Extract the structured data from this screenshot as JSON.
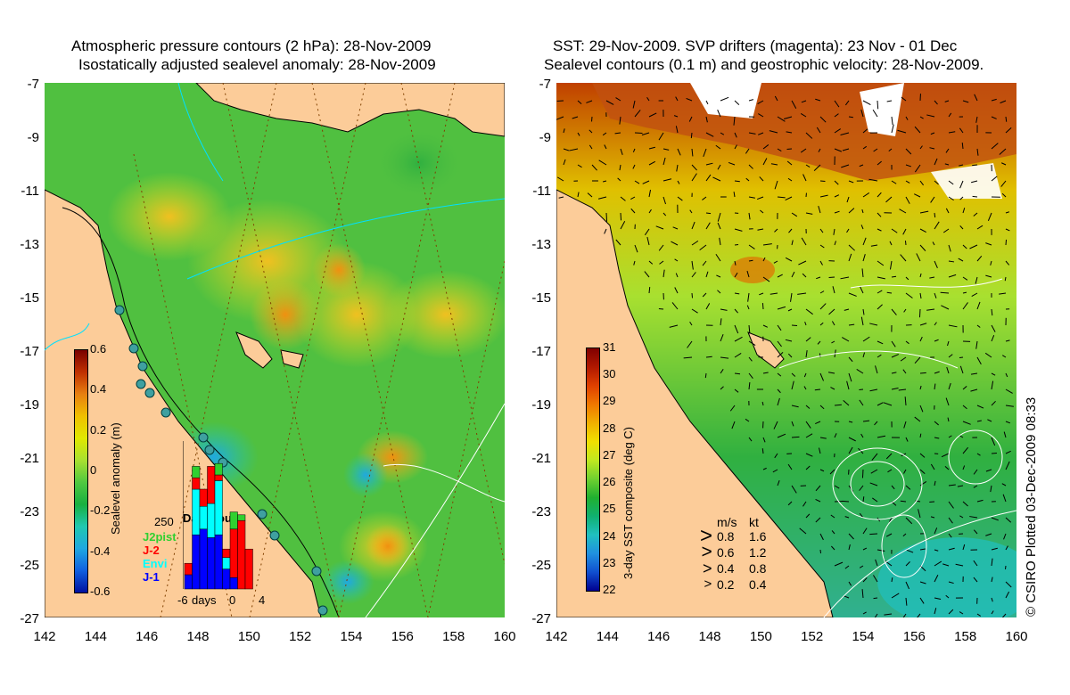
{
  "left_panel": {
    "title_line1": "Atmospheric pressure contours (2 hPa): 28-Nov-2009",
    "title_line2": "Isostatically adjusted sealevel anomaly: 28-Nov-2009",
    "colorbar": {
      "label": "Sealevel anomaly (m)",
      "ticks": [
        "0.6",
        "0.4",
        "0.2",
        "0",
        "-0.2",
        "-0.4",
        "-0.6"
      ],
      "colors": [
        "#7a0000",
        "#c03000",
        "#e88010",
        "#f0c000",
        "#e0e800",
        "#a8e030",
        "#50c840",
        "#18b040",
        "#20c8b0",
        "#20a8e0",
        "#1060e0",
        "#0010a0"
      ]
    },
    "data_count": {
      "title": "Data count",
      "ymax_label": "250",
      "legend": [
        {
          "name": "J2pist",
          "color": "#30d030"
        },
        {
          "name": "J-2",
          "color": "#ff0000"
        },
        {
          "name": "Envi",
          "color": "#00ffff"
        },
        {
          "name": "J-1",
          "color": "#0000ff"
        }
      ],
      "xlabels": [
        "-6",
        "days",
        "0",
        "4"
      ],
      "bins": [
        {
          "j1": 25,
          "envi": 0,
          "j2": 20,
          "j2p": 0
        },
        {
          "j1": 95,
          "envi": 80,
          "j2": 20,
          "j2p": 20
        },
        {
          "j1": 105,
          "envi": 40,
          "j2": 30,
          "j2p": 0
        },
        {
          "j1": 90,
          "envi": 60,
          "j2": 65,
          "j2p": 0
        },
        {
          "j1": 95,
          "envi": 95,
          "j2": 10,
          "j2p": 20
        },
        {
          "j1": 35,
          "envi": 20,
          "j2": 15,
          "j2p": 0
        },
        {
          "j1": 20,
          "envi": 0,
          "j2": 85,
          "j2p": 30
        },
        {
          "j1": 0,
          "envi": 0,
          "j2": 120,
          "j2p": 10
        },
        {
          "j1": 0,
          "envi": 0,
          "j2": 70,
          "j2p": 0
        }
      ]
    }
  },
  "right_panel": {
    "title_line1": "SST: 29-Nov-2009. SVP drifters (magenta): 23 Nov - 01 Dec",
    "title_line2": "Sealevel contours (0.1 m) and geostrophic velocity: 28-Nov-2009.",
    "colorbar": {
      "label": "3-day SST composite (deg C)",
      "ticks": [
        "31",
        "30",
        "29",
        "28",
        "27",
        "26",
        "25",
        "24",
        "23",
        "22"
      ],
      "colors": [
        "#800000",
        "#b01800",
        "#e04000",
        "#f07800",
        "#f0b000",
        "#f0e000",
        "#c0e820",
        "#70d030",
        "#20b030",
        "#10b070",
        "#20c0c0",
        "#2090e0",
        "#1050d0",
        "#000090"
      ]
    },
    "speed_legend": {
      "header_ms": "m/s",
      "header_kt": "kt",
      "rows": [
        {
          "ms": "0.8",
          "kt": "1.6"
        },
        {
          "ms": "0.6",
          "kt": "1.2"
        },
        {
          "ms": "0.4",
          "kt": "0.8"
        },
        {
          "ms": "0.2",
          "kt": "0.4"
        }
      ]
    }
  },
  "axes": {
    "lat_labels": [
      "-7",
      "-9",
      "-11",
      "-13",
      "-15",
      "-17",
      "-19",
      "-21",
      "-23",
      "-25",
      "-27"
    ],
    "lon_labels": [
      "142",
      "144",
      "146",
      "148",
      "150",
      "152",
      "154",
      "156",
      "158",
      "160"
    ]
  },
  "credit": "© CSIRO Plotted 03-Dec-2009 08:33",
  "colors": {
    "land": "#fccc99",
    "ocean_green": "#50c040",
    "yellow_anom": "#d8e020",
    "drifter": "#ff00ff",
    "contour_white": "#ffffff",
    "contour_cyan": "#00e0ff"
  }
}
